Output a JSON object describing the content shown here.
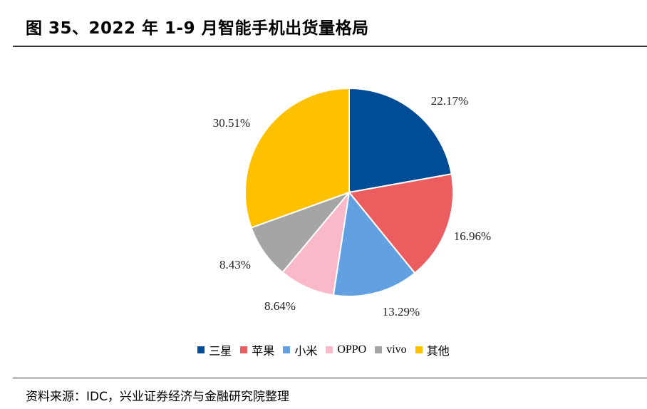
{
  "header": {
    "title": "图 35、2022 年 1-9 月智能手机出货量格局"
  },
  "footer": {
    "source": "资料来源：IDC，兴业证券经济与金融研究院整理"
  },
  "chart_data": {
    "type": "pie",
    "title": "",
    "start_angle_deg": 0,
    "direction": "clockwise",
    "legend_position": "bottom",
    "slices": [
      {
        "label": "三星",
        "value": 22.17,
        "display": "22.17%",
        "color": "#004C97"
      },
      {
        "label": "苹果",
        "value": 16.96,
        "display": "16.96%",
        "color": "#EC5D60"
      },
      {
        "label": "小米",
        "value": 13.29,
        "display": "13.29%",
        "color": "#62A0E2"
      },
      {
        "label": "OPPO",
        "value": 8.64,
        "display": "8.64%",
        "color": "#F9B9C8"
      },
      {
        "label": "vivo",
        "value": 8.43,
        "display": "8.43%",
        "color": "#A5A5A5"
      },
      {
        "label": "其他",
        "value": 30.51,
        "display": "30.51%",
        "color": "#FFC000"
      }
    ]
  }
}
